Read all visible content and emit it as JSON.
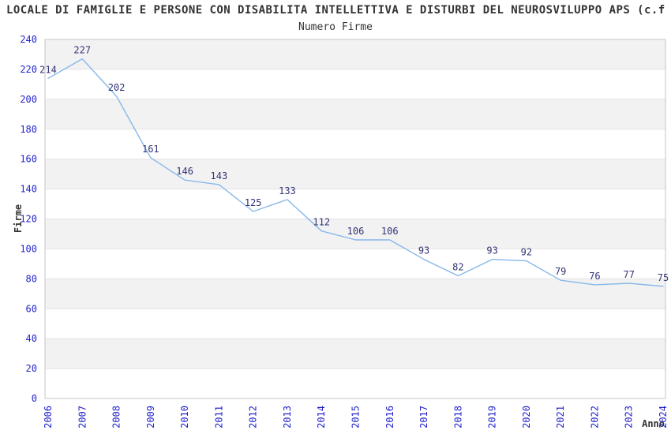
{
  "header": {
    "title": "LOCALE DI FAMIGLIE E PERSONE CON DISABILITA INTELLETTIVA E DISTURBI DEL NEUROSVILUPPO APS (c.f"
  },
  "chart_data": {
    "type": "line",
    "title": "Numero Firme",
    "xlabel": "Anno",
    "ylabel": "Firme",
    "categories": [
      "2006",
      "2007",
      "2008",
      "2009",
      "2010",
      "2011",
      "2012",
      "2013",
      "2014",
      "2015",
      "2016",
      "2017",
      "2018",
      "2019",
      "2020",
      "2021",
      "2022",
      "2023",
      "2024"
    ],
    "values": [
      214,
      227,
      202,
      161,
      146,
      143,
      125,
      133,
      112,
      106,
      106,
      93,
      82,
      93,
      92,
      79,
      76,
      77,
      75
    ],
    "ylim": [
      0,
      240
    ],
    "ytick_step": 20,
    "grid": true,
    "legend": "none",
    "data_labels": true,
    "colors": {
      "line": "#86b8ea",
      "axis_tick_text": "#2222cc",
      "data_label_text": "#333377",
      "band_fill": "#f2f2f2",
      "gridline": "#e4e4e4",
      "plot_border": "#c6c6c6",
      "text": "#333333",
      "background": "#ffffff"
    }
  }
}
